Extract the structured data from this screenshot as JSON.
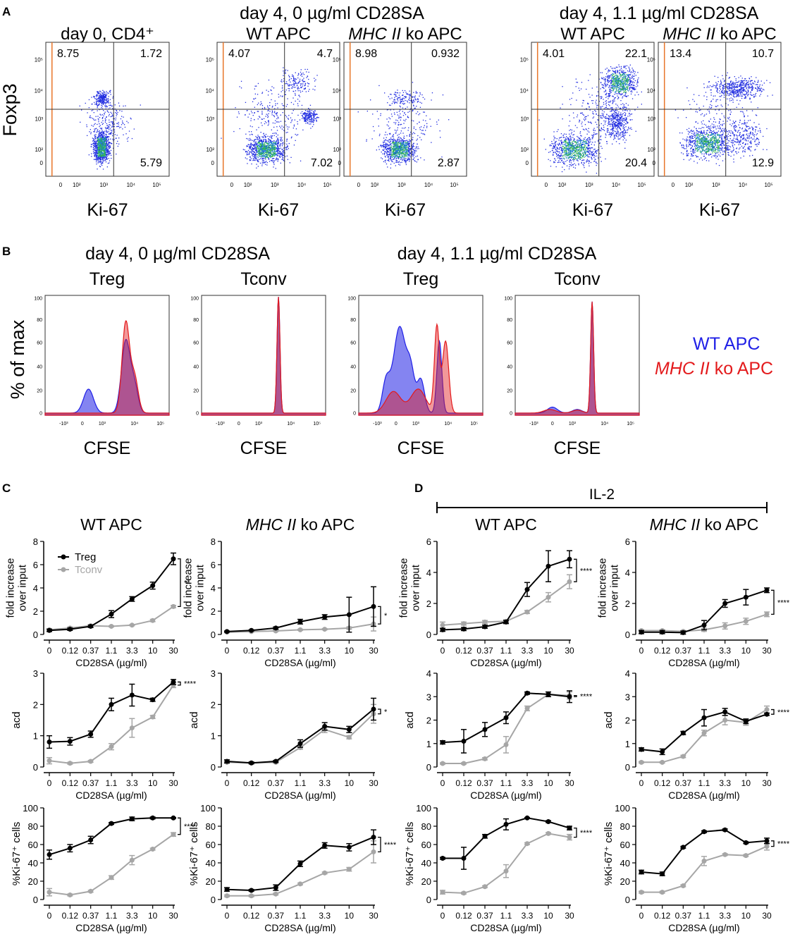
{
  "panel_labels": {
    "a": "A",
    "b": "B",
    "c": "C",
    "d": "D"
  },
  "panel_a": {
    "groups": [
      {
        "title": "day 4, 0 µg/ml CD28SA"
      },
      {
        "title": "day 4, 1.1 µg/ml CD28SA"
      }
    ],
    "ylabel": "Foxp3",
    "xlabel": "Ki-67",
    "y_ticks": [
      "10⁵",
      "10⁴",
      "10³",
      "10²",
      "0"
    ],
    "x_ticks": [
      "0",
      "10²",
      "10³",
      "10⁴",
      "10⁵"
    ],
    "plots": [
      {
        "title": "day 0, CD4⁺",
        "title_italic": "",
        "title_rest": "",
        "q_ul": "8.75",
        "q_ur": "1.72",
        "q_lr": "5.79"
      },
      {
        "title": "WT APC",
        "title_italic": "",
        "title_rest": "",
        "q_ul": "4.07",
        "q_ur": "4.7",
        "q_lr": "7.02"
      },
      {
        "title": "",
        "title_italic": "MHC II",
        "title_rest": " ko APC",
        "q_ul": "8.98",
        "q_ur": "0.932",
        "q_lr": "2.87"
      },
      {
        "title": "WT APC",
        "title_italic": "",
        "title_rest": "",
        "q_ul": "4.01",
        "q_ur": "22.1",
        "q_lr": "20.4"
      },
      {
        "title": "",
        "title_italic": "MHC II",
        "title_rest": " ko APC",
        "q_ul": "13.4",
        "q_ur": "10.7",
        "q_lr": "12.9"
      }
    ]
  },
  "panel_b": {
    "groups": [
      {
        "title": "day 4, 0 µg/ml CD28SA"
      },
      {
        "title": "day 4, 1.1 µg/ml CD28SA"
      }
    ],
    "ylabel": "% of max",
    "xlabel": "CFSE",
    "y_ticks": [
      "100",
      "80",
      "60",
      "40",
      "20",
      "0"
    ],
    "x_ticks": [
      "-10³",
      "0",
      "10³",
      "10⁴",
      "10⁵"
    ],
    "plots": [
      {
        "title": "Treg"
      },
      {
        "title": "Tconv"
      },
      {
        "title": "Treg"
      },
      {
        "title": "Tconv"
      }
    ],
    "legend": [
      {
        "text": "WT APC",
        "italic": "",
        "rest": "",
        "color": "#1f1fe6"
      },
      {
        "text": "",
        "italic": "MHC II",
        "rest": " ko APC",
        "color": "#e31a1c"
      }
    ]
  },
  "panel_d_header": "IL-2",
  "colors": {
    "treg": "#000000",
    "tconv": "#a6a6a6",
    "wt": "#1f1fe6",
    "ko": "#e31a1c"
  },
  "chart_data": {
    "type": "line",
    "categories": [
      "0",
      "0.12",
      "0.37",
      "1.1",
      "3.3",
      "10",
      "30"
    ],
    "xlabel": "CD28SA (µg/ml)",
    "legend": [
      {
        "name": "Treg",
        "color": "#000000"
      },
      {
        "name": "Tconv",
        "color": "#a6a6a6"
      }
    ],
    "columns": [
      {
        "title": "WT APC",
        "title_italic": "",
        "title_rest": ""
      },
      {
        "title": "",
        "title_italic": "MHC II",
        "title_rest": " ko APC"
      },
      {
        "title": "WT APC",
        "title_italic": "",
        "title_rest": ""
      },
      {
        "title": "",
        "title_italic": "MHC II",
        "title_rest": " ko APC"
      }
    ],
    "rows": [
      {
        "ylabel": [
          "fold increase",
          "over input"
        ],
        "ylim": [
          0,
          8
        ],
        "yticks": [
          0,
          2,
          4,
          6,
          8
        ],
        "ylim_d": [
          0,
          6
        ],
        "yticks_d": [
          0,
          2,
          4,
          6
        ]
      },
      {
        "ylabel": [
          "acd"
        ],
        "ylim": [
          0,
          3
        ],
        "yticks": [
          0,
          1,
          2,
          3
        ],
        "ylim_d": [
          0,
          4
        ],
        "yticks_d": [
          0,
          1,
          2,
          3,
          4
        ]
      },
      {
        "ylabel": [
          "%Ki-67⁺ cells"
        ],
        "ylim": [
          0,
          100
        ],
        "yticks": [
          0,
          20,
          40,
          60,
          80,
          100
        ],
        "ylim_d": [
          0,
          100
        ],
        "yticks_d": [
          0,
          20,
          40,
          60,
          80,
          100
        ]
      }
    ],
    "charts": [
      {
        "row": 0,
        "col": 0,
        "sig": "**",
        "treg": [
          0.35,
          0.45,
          0.7,
          1.75,
          3.05,
          4.2,
          6.5
        ],
        "treg_err": [
          0.1,
          0.1,
          0.1,
          0.3,
          0.2,
          0.3,
          0.5
        ],
        "tconv": [
          0.4,
          0.55,
          0.75,
          0.7,
          0.8,
          1.2,
          2.4
        ],
        "tconv_err": [
          0.1,
          0.1,
          0.1,
          0.05,
          0.05,
          0.1,
          0.1
        ]
      },
      {
        "row": 0,
        "col": 1,
        "sig": "*",
        "treg": [
          0.25,
          0.35,
          0.55,
          1.1,
          1.5,
          1.7,
          2.4
        ],
        "treg_err": [
          0.05,
          0.05,
          0.1,
          0.2,
          0.2,
          1.5,
          1.7
        ],
        "tconv": [
          0.2,
          0.25,
          0.3,
          0.4,
          0.45,
          0.55,
          0.9
        ],
        "tconv_err": [
          0.05,
          0.05,
          0.05,
          0.05,
          0.05,
          0.1,
          0.6
        ]
      },
      {
        "row": 0,
        "col": 2,
        "sig": "****",
        "treg": [
          0.3,
          0.35,
          0.5,
          0.8,
          2.9,
          4.4,
          4.85
        ],
        "treg_err": [
          0.1,
          0.1,
          0.1,
          0.1,
          0.45,
          1.0,
          0.55
        ],
        "tconv": [
          0.6,
          0.7,
          0.8,
          0.85,
          1.45,
          2.4,
          3.4
        ],
        "tconv_err": [
          0.2,
          0.1,
          0.1,
          0.1,
          0.1,
          0.3,
          0.45
        ]
      },
      {
        "row": 0,
        "col": 3,
        "sig": "****",
        "treg": [
          0.15,
          0.15,
          0.12,
          0.6,
          2.0,
          2.4,
          2.85
        ],
        "treg_err": [
          0.1,
          0.1,
          0.1,
          0.3,
          0.25,
          0.5,
          0.15
        ],
        "tconv": [
          0.25,
          0.25,
          0.2,
          0.3,
          0.55,
          0.85,
          1.3
        ],
        "tconv_err": [
          0.05,
          0.05,
          0.05,
          0.1,
          0.2,
          0.2,
          0.15
        ]
      },
      {
        "row": 1,
        "col": 0,
        "sig": "****",
        "treg": [
          0.8,
          0.82,
          1.05,
          2.0,
          2.3,
          2.15,
          2.72
        ],
        "treg_err": [
          0.2,
          0.12,
          0.1,
          0.2,
          0.35,
          0.05,
          0.08
        ],
        "tconv": [
          0.2,
          0.12,
          0.18,
          0.65,
          1.25,
          1.6,
          2.62
        ],
        "tconv_err": [
          0.1,
          0.03,
          0.03,
          0.1,
          0.3,
          0.05,
          0.08
        ]
      },
      {
        "row": 1,
        "col": 1,
        "sig": "*",
        "treg": [
          0.18,
          0.13,
          0.18,
          0.75,
          1.3,
          1.2,
          1.85
        ],
        "treg_err": [
          0.05,
          0.03,
          0.03,
          0.12,
          0.12,
          0.1,
          0.35
        ],
        "tconv": [
          0.15,
          0.13,
          0.15,
          0.62,
          1.2,
          0.95,
          1.7
        ],
        "tconv_err": [
          0.03,
          0.03,
          0.03,
          0.05,
          0.1,
          0.05,
          0.3
        ]
      },
      {
        "row": 1,
        "col": 2,
        "sig": "****",
        "treg": [
          1.05,
          1.1,
          1.6,
          2.1,
          3.15,
          3.1,
          3.0
        ],
        "treg_err": [
          0.07,
          0.5,
          0.3,
          0.25,
          0.05,
          0.1,
          0.25
        ],
        "tconv": [
          0.15,
          0.15,
          0.35,
          0.95,
          2.5,
          3.1,
          3.05
        ],
        "tconv_err": [
          0.03,
          0.03,
          0.05,
          0.35,
          0.1,
          0.1,
          0.15
        ]
      },
      {
        "row": 1,
        "col": 3,
        "sig": "****",
        "treg": [
          0.75,
          0.65,
          1.45,
          2.1,
          2.35,
          1.95,
          2.25
        ],
        "treg_err": [
          0.07,
          0.12,
          0.07,
          0.35,
          0.15,
          0.1,
          0.05
        ],
        "tconv": [
          0.2,
          0.2,
          0.45,
          1.45,
          2.0,
          1.9,
          2.45
        ],
        "tconv_err": [
          0.03,
          0.03,
          0.05,
          0.12,
          0.2,
          0.12,
          0.15
        ]
      },
      {
        "row": 2,
        "col": 0,
        "sig": "****",
        "treg": [
          49,
          56,
          65,
          83,
          88,
          89,
          89
        ],
        "treg_err": [
          5,
          4,
          4,
          1,
          2,
          1,
          0.5
        ],
        "tconv": [
          8,
          5,
          9,
          24,
          43,
          55,
          71
        ],
        "tconv_err": [
          4,
          1,
          1,
          2,
          5,
          1,
          2
        ]
      },
      {
        "row": 2,
        "col": 1,
        "sig": "****",
        "treg": [
          11,
          10,
          13,
          39,
          59,
          57,
          68
        ],
        "treg_err": [
          2,
          1,
          3,
          3,
          3,
          4,
          8
        ],
        "tconv": [
          4,
          4,
          6,
          17,
          29,
          33,
          52
        ],
        "tconv_err": [
          1,
          1,
          1,
          1,
          1,
          2,
          12
        ]
      },
      {
        "row": 2,
        "col": 2,
        "sig": "****",
        "treg": [
          45,
          45,
          69,
          82,
          89,
          85,
          78
        ],
        "treg_err": [
          1,
          12,
          2,
          6,
          0.5,
          1,
          2
        ],
        "tconv": [
          8,
          7,
          14,
          31,
          61,
          72,
          68
        ],
        "tconv_err": [
          2,
          1,
          1,
          7,
          1,
          1,
          3
        ]
      },
      {
        "row": 2,
        "col": 3,
        "sig": "****",
        "treg": [
          30,
          28,
          57,
          74,
          76,
          62,
          64
        ],
        "treg_err": [
          2,
          2,
          1,
          1,
          1,
          1,
          3
        ],
        "tconv": [
          8,
          8,
          15,
          42,
          49,
          48,
          58
        ],
        "tconv_err": [
          1,
          1,
          1,
          5,
          1,
          1,
          4
        ]
      }
    ]
  }
}
